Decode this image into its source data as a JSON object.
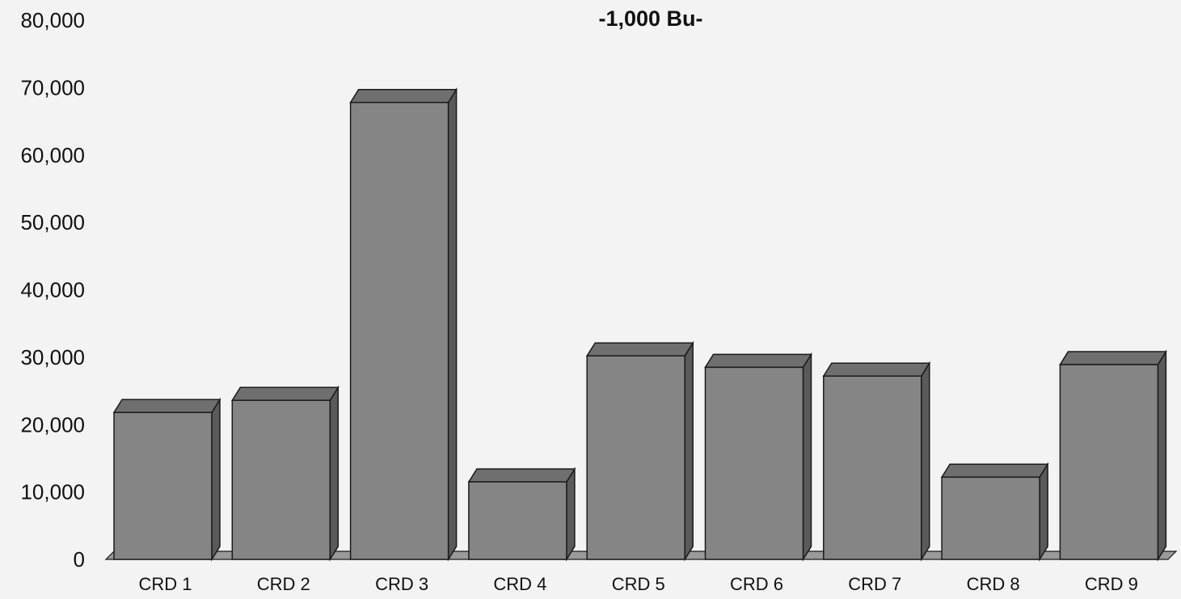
{
  "chart_data": {
    "type": "bar",
    "title": "-1,000 Bu-",
    "xlabel": "",
    "ylabel": "",
    "categories": [
      "CRD 1",
      "CRD 2",
      "CRD 3",
      "CRD 4",
      "CRD 5",
      "CRD 6",
      "CRD 7",
      "CRD 8",
      "CRD 9"
    ],
    "values": [
      21800,
      23600,
      67800,
      11500,
      30200,
      28500,
      27200,
      12200,
      28900
    ],
    "ylim": [
      0,
      80000
    ],
    "yticks": [
      "0",
      "10,000",
      "20,000",
      "30,000",
      "40,000",
      "50,000",
      "60,000",
      "70,000",
      "80,000"
    ],
    "grid": false,
    "legend": "none",
    "colors": {
      "bar_front": "#858585",
      "bar_top": "#6f6f6f",
      "bar_side": "#5a5a5a",
      "edge": "#1a1a1a",
      "floor": "#9a9a9a"
    }
  }
}
